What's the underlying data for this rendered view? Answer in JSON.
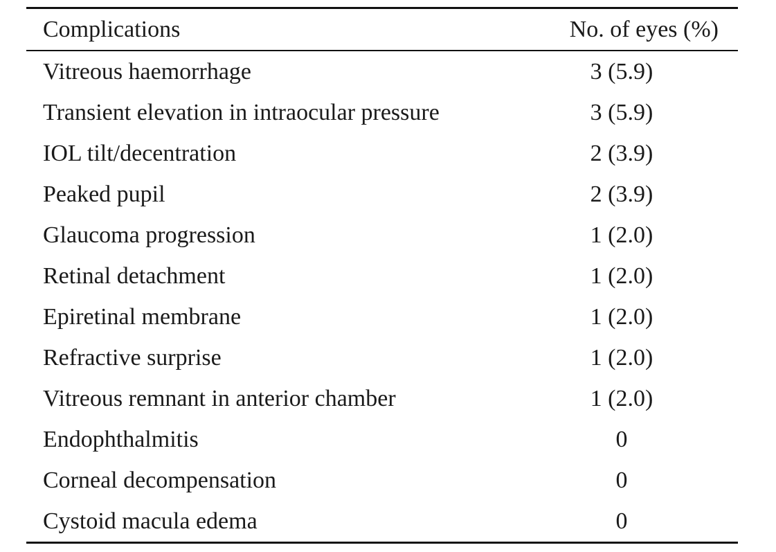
{
  "table": {
    "header": {
      "complications": "Complications",
      "eyes": "No. of eyes (%)"
    },
    "rows": [
      {
        "label": "Vitreous haemorrhage",
        "value": "3 (5.9)"
      },
      {
        "label": "Transient elevation in intraocular pressure",
        "value": "3 (5.9)"
      },
      {
        "label": "IOL tilt/decentration",
        "value": "2 (3.9)"
      },
      {
        "label": "Peaked pupil",
        "value": "2 (3.9)"
      },
      {
        "label": "Glaucoma progression",
        "value": "1 (2.0)"
      },
      {
        "label": "Retinal detachment",
        "value": "1 (2.0)"
      },
      {
        "label": "Epiretinal membrane",
        "value": "1 (2.0)"
      },
      {
        "label": "Refractive surprise",
        "value": "1 (2.0)"
      },
      {
        "label": "Vitreous remnant in anterior chamber",
        "value": "1 (2.0)"
      },
      {
        "label": "Endophthalmitis",
        "value": "0"
      },
      {
        "label": "Corneal decompensation",
        "value": "0"
      },
      {
        "label": "Cystoid macula edema",
        "value": "0"
      }
    ]
  }
}
